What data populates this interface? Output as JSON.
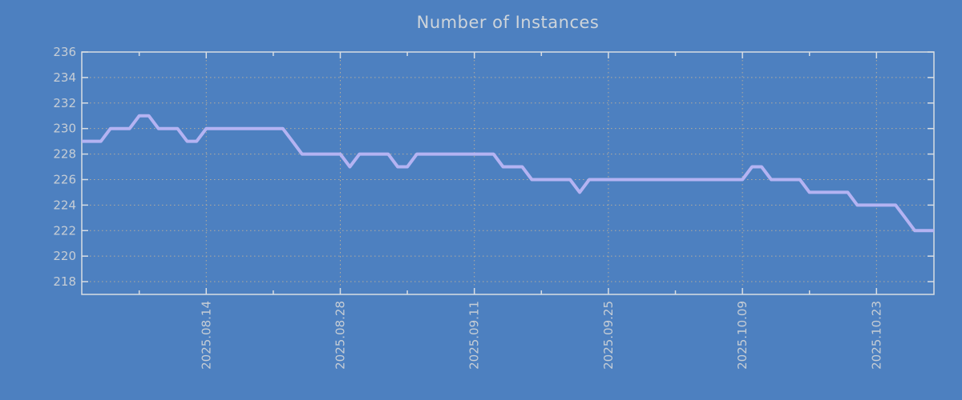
{
  "title": "Number of Instances",
  "colors": {
    "background": "#4d80c0",
    "line": "#b4b3f2",
    "grid": "#b3ac9e",
    "axis": "#d8dde3",
    "tick_label": "#c6cdd5",
    "title": "#ced4da"
  },
  "chart_data": {
    "type": "line",
    "title": "Number of Instances",
    "xlabel": "",
    "ylabel": "",
    "legend": "none",
    "grid": "dotted",
    "y_range": [
      217,
      236
    ],
    "y_ticks": [
      218,
      220,
      222,
      224,
      226,
      228,
      230,
      232,
      234,
      236
    ],
    "x_day_count": 90,
    "x_tick_days": [
      13,
      27,
      41,
      55,
      69,
      83
    ],
    "x_tick_labels": [
      "2025.08.14",
      "2025.08.28",
      "2025.09.11",
      "2025.09.25",
      "2025.10.09",
      "2025.10.23"
    ],
    "x_minor_tick_days": [
      6,
      20,
      34,
      48,
      62,
      76
    ],
    "values": [
      229,
      229,
      229,
      230,
      230,
      230,
      231,
      231,
      230,
      230,
      230,
      229,
      229,
      230,
      230,
      230,
      230,
      230,
      230,
      230,
      230,
      230,
      229,
      228,
      228,
      228,
      228,
      228,
      227,
      228,
      228,
      228,
      228,
      227,
      227,
      228,
      228,
      228,
      228,
      228,
      228,
      228,
      228,
      228,
      227,
      227,
      227,
      226,
      226,
      226,
      226,
      226,
      225,
      226,
      226,
      226,
      226,
      226,
      226,
      226,
      226,
      226,
      226,
      226,
      226,
      226,
      226,
      226,
      226,
      226,
      227,
      227,
      226,
      226,
      226,
      226,
      225,
      225,
      225,
      225,
      225,
      224,
      224,
      224,
      224,
      224,
      223,
      222,
      222,
      222
    ]
  }
}
